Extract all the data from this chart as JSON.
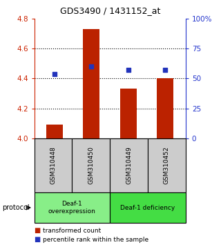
{
  "title": "GDS3490 / 1431152_at",
  "samples": [
    "GSM310448",
    "GSM310450",
    "GSM310449",
    "GSM310452"
  ],
  "bar_values": [
    4.09,
    4.73,
    4.33,
    4.4
  ],
  "dot_values": [
    4.43,
    4.48,
    4.455,
    4.455
  ],
  "ylim_left": [
    4.0,
    4.8
  ],
  "ylim_right": [
    0,
    100
  ],
  "yticks_left": [
    4.0,
    4.2,
    4.4,
    4.6,
    4.8
  ],
  "yticks_right": [
    0,
    25,
    50,
    75,
    100
  ],
  "ytick_labels_right": [
    "0",
    "25",
    "50",
    "75",
    "100%"
  ],
  "bar_color": "#bb2200",
  "dot_color": "#2233bb",
  "bar_width": 0.45,
  "groups": [
    {
      "label": "Deaf-1\noverexpression",
      "samples": [
        0,
        1
      ],
      "color": "#88ee88"
    },
    {
      "label": "Deaf-1 deficiency",
      "samples": [
        2,
        3
      ],
      "color": "#44dd44"
    }
  ],
  "protocol_label": "protocol",
  "legend_bar_label": "transformed count",
  "legend_dot_label": "percentile rank within the sample",
  "sample_box_color": "#cccccc",
  "left_tick_color": "#cc2200",
  "right_tick_color": "#2233cc",
  "gridline_ticks": [
    4.2,
    4.4,
    4.6
  ],
  "fig_width": 3.2,
  "fig_height": 3.54
}
